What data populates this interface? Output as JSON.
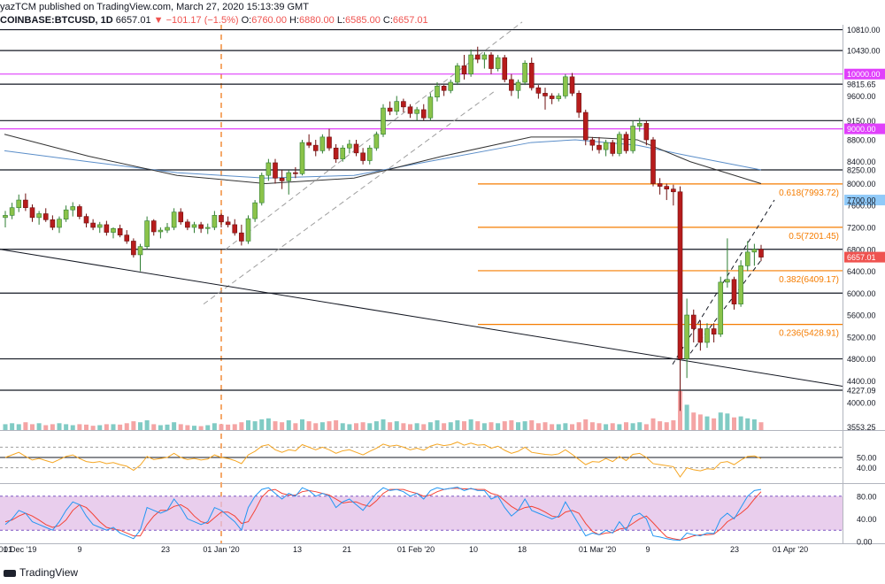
{
  "header": {
    "publisher": "yazTCM",
    "published_text": "published on TradingView.com, March 27, 2020 15:13:39 GMT",
    "symbol": "COINBASE:BTCUSD, 1D",
    "last": "6657.01",
    "change": "▼ −101.17 (−1.5%)",
    "o_label": "O:",
    "o": "6760.00",
    "h_label": "H:",
    "h": "6880.00",
    "l_label": "L:",
    "l": "6585.00",
    "c_label": "C:",
    "c": "6657.01"
  },
  "footer": {
    "brand": "TradingView"
  },
  "colors": {
    "up": "#26a69a",
    "down": "#ef5350",
    "candle_up": "#2e7d32",
    "candle_down": "#b71c1c",
    "fib": "#f57c00",
    "magenta": "#e040fb",
    "ma200": "#5b8ec9",
    "ma100": "#333333",
    "rsi": "#f5a623",
    "stoch_k": "#2196f3",
    "stoch_d": "#f44336",
    "stoch_band": "#e1bee7"
  },
  "chart_data": {
    "type": "candlestick",
    "price_range": [
      3500,
      10900
    ],
    "right_axis_labels": [
      "10810.00",
      "10430.00",
      "10000.00",
      "9815.65",
      "9600.00",
      "9150.00",
      "9000.00",
      "8800.00",
      "8400.00",
      "8250.00",
      "8000.00",
      "7700.00",
      "7600.00",
      "7200.00",
      "6800.00",
      "6657.01",
      "6400.00",
      "6000.00",
      "5600.00",
      "5200.00",
      "4800.00",
      "4400.00",
      "4227.09",
      "4000.00",
      "3553.25"
    ],
    "axis_ticks": [
      10810,
      10430,
      10000,
      9815.65,
      9600,
      9150,
      9000,
      8800,
      8400,
      8250,
      8000,
      7700,
      7600,
      7200,
      6800,
      6657.01,
      6400,
      6000,
      5600,
      5200,
      4800,
      4400,
      4227.09,
      4000,
      3553.25
    ],
    "highlight_labels": [
      {
        "text": "10000.00",
        "style": "magenta"
      },
      {
        "text": "9000.00",
        "style": "magenta"
      },
      {
        "text": "6657.01",
        "style": "down"
      },
      {
        "text": "7700.00",
        "style": "blue"
      }
    ],
    "horizontal_levels": [
      10810,
      10430,
      9815.65,
      9150,
      8250,
      6800,
      6000,
      4800,
      4227.09
    ],
    "magenta_levels": [
      10000,
      9000
    ],
    "fib_levels": [
      {
        "label": "0.618(7993.72)",
        "value": 7993.72
      },
      {
        "label": "0.5(7201.45)",
        "value": 7201.45
      },
      {
        "label": "0.382(6409.17)",
        "value": 6409.17
      },
      {
        "label": "0.236(5428.91)",
        "value": 5428.91
      }
    ],
    "x_labels": [
      "01",
      "01 Dec '19",
      "9",
      "23",
      "01 Jan '20",
      "13",
      "21",
      "01 Feb '20",
      "10",
      "18",
      "01 Mar '20",
      "9",
      "23",
      "01 Apr '20"
    ],
    "candles_ohlc": [
      [
        7380,
        7500,
        7200,
        7420
      ],
      [
        7420,
        7650,
        7350,
        7560
      ],
      [
        7560,
        7800,
        7480,
        7700
      ],
      [
        7700,
        7820,
        7500,
        7560
      ],
      [
        7560,
        7620,
        7300,
        7380
      ],
      [
        7380,
        7500,
        7250,
        7450
      ],
      [
        7450,
        7550,
        7300,
        7340
      ],
      [
        7340,
        7420,
        7150,
        7200
      ],
      [
        7200,
        7400,
        7100,
        7350
      ],
      [
        7350,
        7600,
        7300,
        7520
      ],
      [
        7520,
        7660,
        7400,
        7580
      ],
      [
        7580,
        7620,
        7350,
        7400
      ],
      [
        7400,
        7450,
        7200,
        7280
      ],
      [
        7280,
        7350,
        7150,
        7200
      ],
      [
        7200,
        7300,
        7100,
        7250
      ],
      [
        7250,
        7320,
        7050,
        7110
      ],
      [
        7110,
        7200,
        7000,
        7180
      ],
      [
        7180,
        7250,
        7020,
        7060
      ],
      [
        7060,
        7150,
        6900,
        6950
      ],
      [
        6950,
        7000,
        6650,
        6700
      ],
      [
        6700,
        6900,
        6400,
        6850
      ],
      [
        6850,
        7400,
        6800,
        7320
      ],
      [
        7320,
        7350,
        7050,
        7120
      ],
      [
        7120,
        7200,
        7000,
        7150
      ],
      [
        7150,
        7280,
        7100,
        7200
      ],
      [
        7200,
        7550,
        7150,
        7480
      ],
      [
        7480,
        7550,
        7250,
        7300
      ],
      [
        7300,
        7350,
        7150,
        7200
      ],
      [
        7200,
        7300,
        7100,
        7250
      ],
      [
        7250,
        7300,
        7100,
        7180
      ],
      [
        7180,
        7270,
        7080,
        7200
      ],
      [
        7200,
        7500,
        7150,
        7420
      ],
      [
        7420,
        7450,
        7200,
        7300
      ],
      [
        7300,
        7400,
        7200,
        7250
      ],
      [
        7250,
        7350,
        7050,
        7100
      ],
      [
        7100,
        7250,
        6870,
        6950
      ],
      [
        6950,
        7420,
        6900,
        7360
      ],
      [
        7360,
        7700,
        7300,
        7650
      ],
      [
        7650,
        8200,
        7600,
        8150
      ],
      [
        8150,
        8450,
        8050,
        8380
      ],
      [
        8380,
        8450,
        8000,
        8100
      ],
      [
        8100,
        8250,
        7900,
        8050
      ],
      [
        8050,
        8250,
        7800,
        8200
      ],
      [
        8200,
        8300,
        8100,
        8180
      ],
      [
        8180,
        8800,
        8150,
        8750
      ],
      [
        8750,
        8900,
        8650,
        8700
      ],
      [
        8700,
        8800,
        8500,
        8600
      ],
      [
        8600,
        8900,
        8550,
        8850
      ],
      [
        8850,
        9000,
        8600,
        8650
      ],
      [
        8650,
        8720,
        8380,
        8450
      ],
      [
        8450,
        8700,
        8400,
        8650
      ],
      [
        8650,
        8800,
        8550,
        8720
      ],
      [
        8720,
        8800,
        8500,
        8560
      ],
      [
        8560,
        8650,
        8350,
        8420
      ],
      [
        8420,
        8700,
        8350,
        8650
      ],
      [
        8650,
        8950,
        8600,
        8900
      ],
      [
        8900,
        9450,
        8850,
        9380
      ],
      [
        9380,
        9500,
        9250,
        9320
      ],
      [
        9320,
        9600,
        9250,
        9500
      ],
      [
        9500,
        9550,
        9300,
        9400
      ],
      [
        9400,
        9450,
        9200,
        9280
      ],
      [
        9280,
        9400,
        9150,
        9350
      ],
      [
        9350,
        9450,
        9150,
        9200
      ],
      [
        9200,
        9650,
        9150,
        9580
      ],
      [
        9580,
        9850,
        9500,
        9780
      ],
      [
        9780,
        9800,
        9600,
        9700
      ],
      [
        9700,
        9900,
        9650,
        9850
      ],
      [
        9850,
        10200,
        9800,
        10150
      ],
      [
        10150,
        10350,
        9900,
        10000
      ],
      [
        10000,
        10450,
        9950,
        10350
      ],
      [
        10350,
        10500,
        10200,
        10270
      ],
      [
        10270,
        10400,
        10100,
        10350
      ],
      [
        10350,
        10400,
        10000,
        10100
      ],
      [
        10100,
        10350,
        10050,
        10300
      ],
      [
        10300,
        10350,
        9850,
        9900
      ],
      [
        9900,
        10000,
        9600,
        9700
      ],
      [
        9700,
        9900,
        9550,
        9850
      ],
      [
        9850,
        10250,
        9800,
        10200
      ],
      [
        10200,
        10300,
        9700,
        9750
      ],
      [
        9750,
        9800,
        9550,
        9650
      ],
      [
        9650,
        9750,
        9350,
        9600
      ],
      [
        9600,
        9650,
        9450,
        9550
      ],
      [
        9550,
        9650,
        9500,
        9600
      ],
      [
        9600,
        10000,
        9550,
        9950
      ],
      [
        9950,
        10020,
        9600,
        9650
      ],
      [
        9650,
        9700,
        9200,
        9300
      ],
      [
        9300,
        9350,
        8700,
        8800
      ],
      [
        8800,
        8850,
        8600,
        8700
      ],
      [
        8700,
        8850,
        8550,
        8620
      ],
      [
        8620,
        8800,
        8500,
        8750
      ],
      [
        8750,
        8800,
        8500,
        8550
      ],
      [
        8550,
        8950,
        8500,
        8900
      ],
      [
        8900,
        8950,
        8550,
        8600
      ],
      [
        8600,
        9150,
        8550,
        9050
      ],
      [
        9050,
        9200,
        8950,
        9100
      ],
      [
        9100,
        9150,
        8700,
        8800
      ],
      [
        8800,
        8850,
        7950,
        8000
      ],
      [
        8000,
        8100,
        7800,
        7950
      ],
      [
        7950,
        8000,
        7700,
        7900
      ],
      [
        7900,
        7980,
        7600,
        7850
      ],
      [
        7850,
        7950,
        3850,
        4800
      ],
      [
        4800,
        5900,
        4450,
        5600
      ],
      [
        5600,
        5700,
        5100,
        5350
      ],
      [
        5350,
        5500,
        4950,
        5100
      ],
      [
        5100,
        5450,
        5000,
        5350
      ],
      [
        5350,
        5450,
        5100,
        5250
      ],
      [
        5250,
        6300,
        5200,
        6200
      ],
      [
        6200,
        7000,
        6100,
        6250
      ],
      [
        6250,
        6300,
        5700,
        5800
      ],
      [
        5800,
        6600,
        5750,
        6500
      ],
      [
        6500,
        6950,
        6400,
        6750
      ],
      [
        6750,
        6900,
        6500,
        6800
      ],
      [
        6800,
        6880,
        6585,
        6657
      ]
    ],
    "volume_relative": [
      0.3,
      0.35,
      0.3,
      0.4,
      0.3,
      0.35,
      0.25,
      0.3,
      0.35,
      0.3,
      0.25,
      0.3,
      0.28,
      0.22,
      0.25,
      0.3,
      0.3,
      0.28,
      0.35,
      0.45,
      0.4,
      0.5,
      0.3,
      0.25,
      0.28,
      0.4,
      0.3,
      0.25,
      0.22,
      0.2,
      0.25,
      0.35,
      0.3,
      0.28,
      0.3,
      0.4,
      0.5,
      0.45,
      0.55,
      0.6,
      0.45,
      0.4,
      0.5,
      0.35,
      0.55,
      0.45,
      0.35,
      0.4,
      0.45,
      0.5,
      0.35,
      0.3,
      0.35,
      0.4,
      0.35,
      0.45,
      0.55,
      0.4,
      0.45,
      0.35,
      0.3,
      0.35,
      0.3,
      0.4,
      0.5,
      0.35,
      0.4,
      0.5,
      0.45,
      0.55,
      0.45,
      0.35,
      0.4,
      0.35,
      0.45,
      0.5,
      0.4,
      0.45,
      0.5,
      0.35,
      0.4,
      0.3,
      0.3,
      0.35,
      0.3,
      0.4,
      0.55,
      0.4,
      0.35,
      0.3,
      0.35,
      0.3,
      0.4,
      0.35,
      0.4,
      0.3,
      0.6,
      0.45,
      0.4,
      0.5,
      2.0,
      1.3,
      0.9,
      0.8,
      0.7,
      0.6,
      0.9,
      0.85,
      0.65,
      0.7,
      0.6,
      0.55,
      0.4
    ],
    "rsi_values": [
      50,
      55,
      60,
      52,
      45,
      48,
      44,
      40,
      46,
      52,
      55,
      48,
      42,
      40,
      42,
      38,
      40,
      36,
      33,
      25,
      35,
      52,
      46,
      48,
      50,
      58,
      50,
      46,
      48,
      45,
      47,
      55,
      50,
      48,
      44,
      38,
      55,
      62,
      72,
      75,
      65,
      60,
      65,
      63,
      75,
      70,
      65,
      70,
      65,
      58,
      63,
      65,
      60,
      55,
      62,
      68,
      76,
      72,
      74,
      70,
      65,
      68,
      64,
      72,
      76,
      73,
      75,
      80,
      74,
      78,
      74,
      75,
      68,
      72,
      64,
      58,
      62,
      70,
      60,
      58,
      56,
      55,
      57,
      65,
      56,
      46,
      36,
      42,
      41,
      48,
      42,
      52,
      44,
      56,
      58,
      50,
      38,
      36,
      34,
      32,
      12,
      30,
      26,
      24,
      28,
      27,
      40,
      42,
      36,
      45,
      52,
      53,
      48
    ],
    "rsi_guides": [
      70,
      50,
      30
    ],
    "rsi_labels": [
      "50.00",
      "40.00"
    ],
    "stoch_k": [
      30,
      40,
      55,
      50,
      35,
      30,
      25,
      20,
      35,
      55,
      70,
      65,
      45,
      30,
      25,
      20,
      25,
      15,
      10,
      5,
      20,
      60,
      55,
      50,
      55,
      75,
      60,
      40,
      35,
      30,
      35,
      60,
      55,
      45,
      35,
      20,
      60,
      80,
      92,
      95,
      85,
      75,
      85,
      80,
      95,
      90,
      80,
      85,
      80,
      60,
      70,
      75,
      65,
      55,
      70,
      85,
      95,
      90,
      92,
      88,
      80,
      85,
      75,
      90,
      95,
      92,
      94,
      96,
      90,
      94,
      90,
      90,
      75,
      80,
      60,
      45,
      55,
      75,
      55,
      50,
      45,
      40,
      45,
      70,
      50,
      30,
      10,
      15,
      12,
      20,
      15,
      35,
      20,
      45,
      50,
      40,
      10,
      8,
      5,
      3,
      2,
      15,
      12,
      10,
      15,
      14,
      40,
      50,
      40,
      60,
      80,
      90,
      92
    ],
    "stoch_d": [
      35,
      38,
      45,
      50,
      45,
      38,
      30,
      25,
      28,
      38,
      55,
      65,
      60,
      48,
      35,
      25,
      22,
      20,
      15,
      10,
      10,
      30,
      45,
      55,
      55,
      62,
      65,
      58,
      45,
      35,
      32,
      42,
      52,
      52,
      45,
      32,
      35,
      55,
      78,
      90,
      92,
      85,
      82,
      82,
      88,
      90,
      88,
      85,
      82,
      75,
      68,
      70,
      70,
      65,
      62,
      72,
      85,
      92,
      92,
      92,
      88,
      85,
      80,
      82,
      88,
      92,
      94,
      94,
      93,
      93,
      92,
      92,
      85,
      82,
      72,
      62,
      55,
      60,
      62,
      58,
      52,
      45,
      43,
      52,
      55,
      50,
      32,
      18,
      12,
      15,
      16,
      22,
      24,
      32,
      40,
      45,
      33,
      20,
      8,
      5,
      3,
      6,
      10,
      12,
      12,
      13,
      22,
      35,
      42,
      50,
      60,
      75,
      88
    ],
    "stoch_guides": [
      80,
      20
    ],
    "stoch_labels": [
      "80.00",
      "40.00",
      "0.00"
    ]
  }
}
